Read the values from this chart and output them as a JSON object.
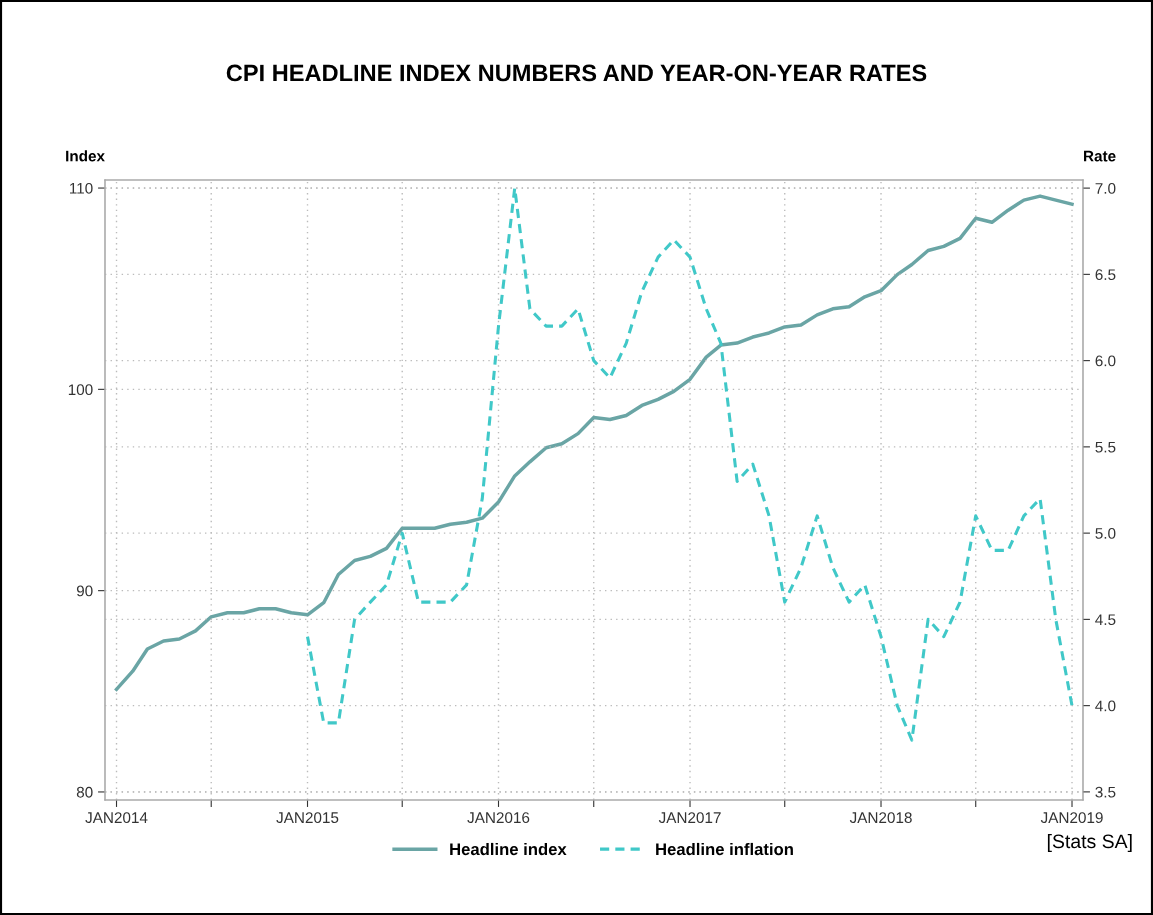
{
  "chart_data": {
    "type": "line",
    "title": "CPI HEADLINE INDEX NUMBERS AND YEAR-ON-YEAR RATES",
    "ylabel": "Index",
    "y2label": "Rate",
    "x": [
      "2014-01",
      "2014-02",
      "2014-03",
      "2014-04",
      "2014-05",
      "2014-06",
      "2014-07",
      "2014-08",
      "2014-09",
      "2014-10",
      "2014-11",
      "2014-12",
      "2015-01",
      "2015-02",
      "2015-03",
      "2015-04",
      "2015-05",
      "2015-06",
      "2015-07",
      "2015-08",
      "2015-09",
      "2015-10",
      "2015-11",
      "2015-12",
      "2016-01",
      "2016-02",
      "2016-03",
      "2016-04",
      "2016-05",
      "2016-06",
      "2016-07",
      "2016-08",
      "2016-09",
      "2016-10",
      "2016-11",
      "2016-12",
      "2017-01",
      "2017-02",
      "2017-03",
      "2017-04",
      "2017-05",
      "2017-06",
      "2017-07",
      "2017-08",
      "2017-09",
      "2017-10",
      "2017-11",
      "2017-12",
      "2018-01",
      "2018-02",
      "2018-03",
      "2018-04",
      "2018-05",
      "2018-06",
      "2018-07",
      "2018-08",
      "2018-09",
      "2018-10",
      "2018-11",
      "2018-12",
      "2019-01"
    ],
    "series": [
      {
        "name": "Headline index",
        "color": "#6aa5a5",
        "line_style": "solid",
        "values": [
          85.1,
          86.0,
          87.1,
          87.5,
          87.6,
          88.0,
          88.7,
          88.9,
          88.9,
          89.1,
          89.1,
          88.9,
          88.8,
          89.4,
          90.8,
          91.5,
          91.7,
          92.1,
          93.1,
          93.1,
          93.1,
          93.3,
          93.4,
          93.6,
          94.4,
          95.7,
          96.4,
          97.1,
          97.3,
          97.8,
          98.6,
          98.5,
          98.7,
          99.2,
          99.5,
          99.9,
          100.5,
          101.6,
          102.2,
          102.3,
          102.6,
          102.8,
          103.1,
          103.2,
          103.7,
          104.0,
          104.1,
          104.6,
          104.9,
          105.7,
          106.2,
          106.9,
          107.1,
          107.5,
          108.5,
          108.3,
          108.9,
          109.4,
          109.6,
          109.4,
          109.2
        ]
      },
      {
        "name": "Headline inflation",
        "color": "#40c8c8",
        "line_style": "dashed",
        "axis": "y2",
        "values": [
          null,
          null,
          null,
          null,
          null,
          null,
          null,
          null,
          null,
          null,
          null,
          null,
          4.4,
          3.9,
          3.9,
          4.5,
          4.6,
          4.7,
          5.0,
          4.6,
          4.6,
          4.6,
          4.7,
          5.2,
          6.2,
          7.0,
          6.3,
          6.2,
          6.2,
          6.3,
          6.0,
          5.9,
          6.1,
          6.4,
          6.6,
          6.7,
          6.6,
          6.3,
          6.1,
          5.3,
          5.4,
          5.1,
          4.6,
          4.8,
          5.1,
          4.8,
          4.6,
          4.7,
          4.4,
          4.0,
          3.8,
          4.5,
          4.4,
          4.6,
          5.1,
          4.9,
          4.9,
          5.1,
          5.2,
          4.5,
          4.0
        ]
      }
    ],
    "xlim": [
      "2013-12-10",
      "2019-01-22"
    ],
    "xticks": [
      {
        "value": "2014-01",
        "label": "JAN2014"
      },
      {
        "value": "2014-07",
        "label": null
      },
      {
        "value": "2015-01",
        "label": "JAN2015"
      },
      {
        "value": "2015-07",
        "label": null
      },
      {
        "value": "2016-01",
        "label": "JAN2016"
      },
      {
        "value": "2016-07",
        "label": null
      },
      {
        "value": "2017-01",
        "label": "JAN2017"
      },
      {
        "value": "2017-07",
        "label": null
      },
      {
        "value": "2018-01",
        "label": "JAN2018"
      },
      {
        "value": "2018-07",
        "label": null
      },
      {
        "value": "2019-01",
        "label": "JAN2019"
      }
    ],
    "ylim": [
      79.6,
      110.4
    ],
    "yticks": [
      80,
      90,
      100,
      110
    ],
    "y2lim": [
      3.453,
      7.047
    ],
    "y2ticks": [
      3.5,
      {
        "value": 4,
        "label": "4.0"
      },
      4.5,
      {
        "value": 5,
        "label": "5.0"
      },
      5.5,
      {
        "value": 6,
        "label": "6.0"
      },
      6.5,
      {
        "value": 7,
        "label": "7.0"
      }
    ],
    "grid": true,
    "legend": "bottom",
    "marker": "none",
    "annotations": [
      "[Stats SA]"
    ]
  }
}
